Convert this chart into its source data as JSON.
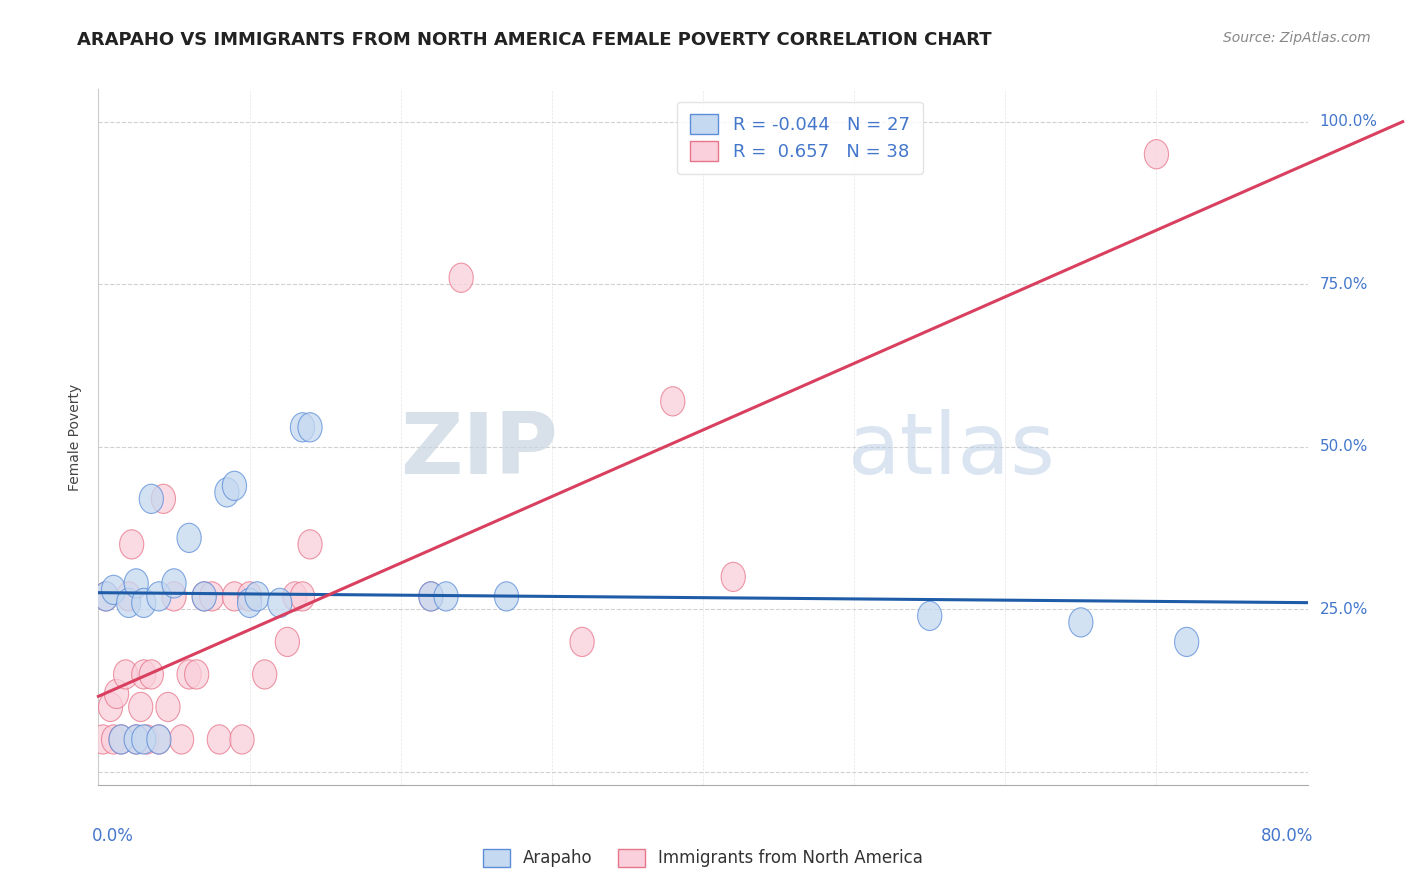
{
  "title": "ARAPAHO VS IMMIGRANTS FROM NORTH AMERICA FEMALE POVERTY CORRELATION CHART",
  "source_text": "Source: ZipAtlas.com",
  "ylabel": "Female Poverty",
  "watermark_zip": "ZIP",
  "watermark_atlas": "atlas",
  "legend_labels": [
    "Arapaho",
    "Immigrants from North America"
  ],
  "series1_name": "Arapaho",
  "series1_face_color": "#c5d9f0",
  "series1_edge_color": "#5b8dd9",
  "series1_line_color": "#1f5ca8",
  "series1_R": -0.044,
  "series1_N": 27,
  "series2_name": "Immigrants from North America",
  "series2_face_color": "#f9d0db",
  "series2_edge_color": "#e8758a",
  "series2_line_color": "#d94060",
  "series2_R": 0.657,
  "series2_N": 38,
  "xmin": 0.0,
  "xmax": 0.8,
  "ymin": -0.02,
  "ymax": 1.05,
  "yticks": [
    0.0,
    0.25,
    0.5,
    0.75,
    1.0
  ],
  "ytick_labels": [
    "",
    "25.0%",
    "50.0%",
    "75.0%",
    "100.0%"
  ],
  "xtick_left": "0.0%",
  "xtick_right": "80.0%",
  "grid_color": "#cccccc",
  "background_color": "#ffffff",
  "title_color": "#222222",
  "source_color": "#888888",
  "tick_color": "#4477cc",
  "series1_x": [
    0.005,
    0.01,
    0.015,
    0.02,
    0.025,
    0.03,
    0.035,
    0.04,
    0.05,
    0.06,
    0.07,
    0.085,
    0.09,
    0.1,
    0.105,
    0.12,
    0.135,
    0.14,
    0.22,
    0.23,
    0.27,
    0.55,
    0.65,
    0.72,
    0.025,
    0.03,
    0.04
  ],
  "series1_y": [
    0.27,
    0.28,
    0.05,
    0.26,
    0.29,
    0.26,
    0.42,
    0.27,
    0.29,
    0.36,
    0.27,
    0.43,
    0.44,
    0.26,
    0.27,
    0.26,
    0.53,
    0.53,
    0.27,
    0.27,
    0.27,
    0.24,
    0.23,
    0.2,
    0.05,
    0.05,
    0.05
  ],
  "series2_x": [
    0.003,
    0.005,
    0.008,
    0.01,
    0.012,
    0.015,
    0.018,
    0.02,
    0.022,
    0.025,
    0.028,
    0.03,
    0.032,
    0.035,
    0.04,
    0.043,
    0.046,
    0.05,
    0.055,
    0.06,
    0.065,
    0.07,
    0.075,
    0.08,
    0.09,
    0.095,
    0.1,
    0.11,
    0.125,
    0.13,
    0.135,
    0.14,
    0.22,
    0.24,
    0.32,
    0.38,
    0.42,
    0.7
  ],
  "series2_y": [
    0.05,
    0.27,
    0.1,
    0.05,
    0.12,
    0.05,
    0.15,
    0.27,
    0.35,
    0.05,
    0.1,
    0.15,
    0.05,
    0.15,
    0.05,
    0.42,
    0.1,
    0.27,
    0.05,
    0.15,
    0.15,
    0.27,
    0.27,
    0.05,
    0.27,
    0.05,
    0.27,
    0.15,
    0.2,
    0.27,
    0.27,
    0.35,
    0.27,
    0.76,
    0.2,
    0.57,
    0.3,
    0.95
  ]
}
